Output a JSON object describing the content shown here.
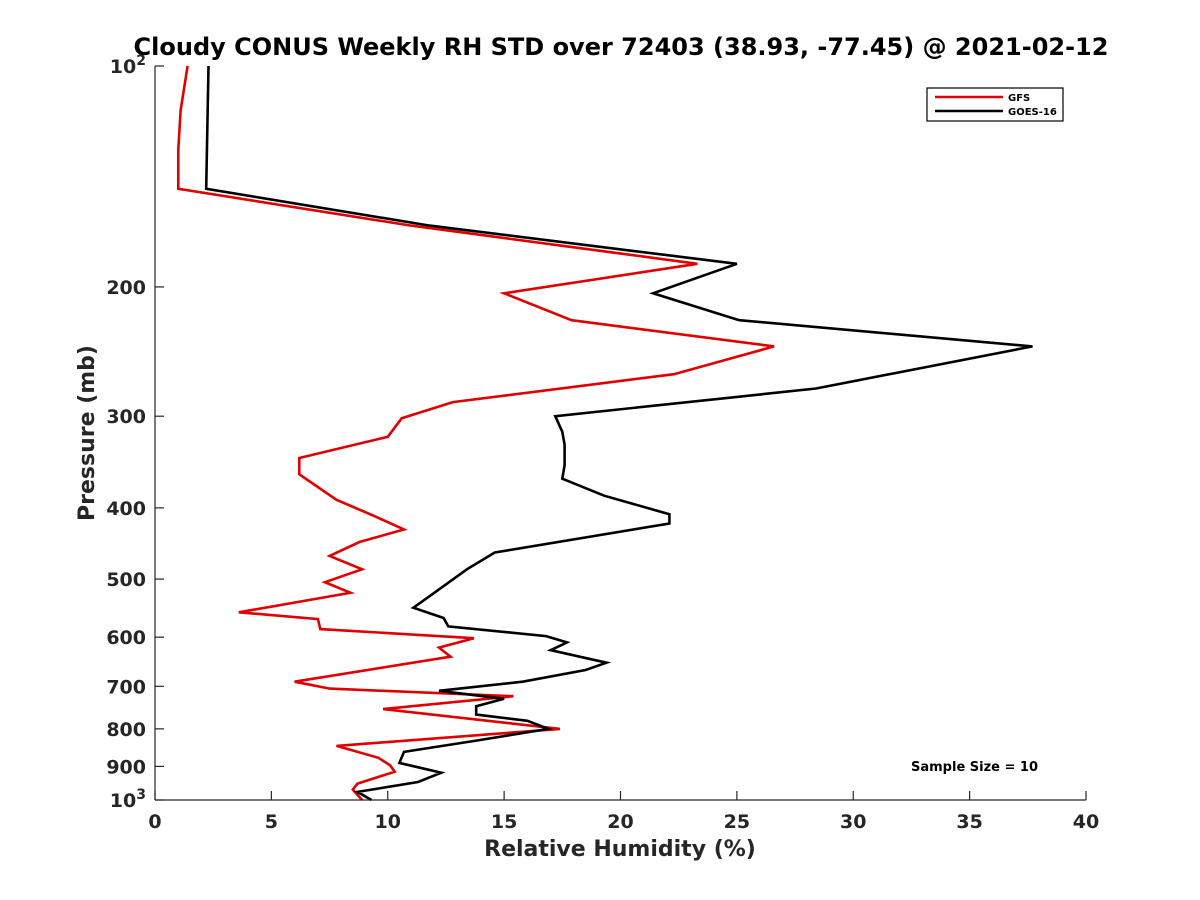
{
  "chart_data": {
    "type": "line",
    "title": "Cloudy CONUS Weekly RH STD over 72403 (38.93, -77.45) @ 2021-02-12",
    "xlabel": "Relative Humidity (%)",
    "ylabel": "Pressure (mb)",
    "xlim": [
      0,
      40
    ],
    "ylim": [
      100,
      1000
    ],
    "y_scale": "log",
    "y_reversed": true,
    "grid": false,
    "legend_position": "top-right",
    "x_ticks": [
      "0",
      "5",
      "10",
      "15",
      "20",
      "25",
      "30",
      "35",
      "40"
    ],
    "y_ticks": [
      {
        "value": 100,
        "base": "10",
        "exp": "2"
      },
      {
        "value": 200,
        "label": "200"
      },
      {
        "value": 300,
        "label": "300"
      },
      {
        "value": 400,
        "label": "400"
      },
      {
        "value": 500,
        "label": "500"
      },
      {
        "value": 600,
        "label": "600"
      },
      {
        "value": 700,
        "label": "700"
      },
      {
        "value": 800,
        "label": "800"
      },
      {
        "value": 900,
        "label": "900"
      },
      {
        "value": 1000,
        "base": "10",
        "exp": "3"
      }
    ],
    "annotation": "Sample Size = 10",
    "series": [
      {
        "name": "GFS",
        "color": "#e00000",
        "points": [
          {
            "x": 1.4,
            "y": 100
          },
          {
            "x": 1.1,
            "y": 115
          },
          {
            "x": 1.0,
            "y": 130
          },
          {
            "x": 1.0,
            "y": 147
          },
          {
            "x": 11.0,
            "y": 165
          },
          {
            "x": 23.3,
            "y": 186
          },
          {
            "x": 15.0,
            "y": 204
          },
          {
            "x": 17.9,
            "y": 222
          },
          {
            "x": 26.6,
            "y": 241
          },
          {
            "x": 22.3,
            "y": 263
          },
          {
            "x": 12.8,
            "y": 287
          },
          {
            "x": 10.6,
            "y": 302
          },
          {
            "x": 10.0,
            "y": 320
          },
          {
            "x": 6.2,
            "y": 342
          },
          {
            "x": 6.2,
            "y": 360
          },
          {
            "x": 7.8,
            "y": 390
          },
          {
            "x": 9.4,
            "y": 410
          },
          {
            "x": 10.7,
            "y": 428
          },
          {
            "x": 8.8,
            "y": 445
          },
          {
            "x": 7.5,
            "y": 465
          },
          {
            "x": 8.9,
            "y": 485
          },
          {
            "x": 7.3,
            "y": 505
          },
          {
            "x": 8.4,
            "y": 522
          },
          {
            "x": 3.6,
            "y": 555
          },
          {
            "x": 7.0,
            "y": 567
          },
          {
            "x": 7.1,
            "y": 585
          },
          {
            "x": 13.7,
            "y": 602
          },
          {
            "x": 12.2,
            "y": 620
          },
          {
            "x": 12.7,
            "y": 638
          },
          {
            "x": 6.0,
            "y": 690
          },
          {
            "x": 7.5,
            "y": 705
          },
          {
            "x": 15.4,
            "y": 722
          },
          {
            "x": 9.8,
            "y": 752
          },
          {
            "x": 17.4,
            "y": 800
          },
          {
            "x": 7.8,
            "y": 844
          },
          {
            "x": 9.6,
            "y": 876
          },
          {
            "x": 10.1,
            "y": 897
          },
          {
            "x": 10.3,
            "y": 915
          },
          {
            "x": 8.7,
            "y": 950
          },
          {
            "x": 8.5,
            "y": 968
          },
          {
            "x": 8.9,
            "y": 1000
          }
        ]
      },
      {
        "name": "GOES-16",
        "color": "#000000",
        "points": [
          {
            "x": 2.3,
            "y": 100
          },
          {
            "x": 2.2,
            "y": 147
          },
          {
            "x": 11.8,
            "y": 165
          },
          {
            "x": 25.0,
            "y": 186
          },
          {
            "x": 21.4,
            "y": 204
          },
          {
            "x": 25.1,
            "y": 222
          },
          {
            "x": 37.7,
            "y": 241
          },
          {
            "x": 28.4,
            "y": 275
          },
          {
            "x": 17.2,
            "y": 300
          },
          {
            "x": 17.5,
            "y": 315
          },
          {
            "x": 17.6,
            "y": 328
          },
          {
            "x": 17.6,
            "y": 350
          },
          {
            "x": 17.5,
            "y": 365
          },
          {
            "x": 19.3,
            "y": 385
          },
          {
            "x": 22.1,
            "y": 408
          },
          {
            "x": 22.1,
            "y": 420
          },
          {
            "x": 14.6,
            "y": 460
          },
          {
            "x": 13.4,
            "y": 485
          },
          {
            "x": 12.0,
            "y": 522
          },
          {
            "x": 11.1,
            "y": 547
          },
          {
            "x": 12.4,
            "y": 565
          },
          {
            "x": 12.6,
            "y": 580
          },
          {
            "x": 16.8,
            "y": 598
          },
          {
            "x": 17.7,
            "y": 610
          },
          {
            "x": 17.0,
            "y": 625
          },
          {
            "x": 19.4,
            "y": 650
          },
          {
            "x": 18.5,
            "y": 665
          },
          {
            "x": 15.8,
            "y": 690
          },
          {
            "x": 12.2,
            "y": 710
          },
          {
            "x": 15.0,
            "y": 728
          },
          {
            "x": 13.8,
            "y": 745
          },
          {
            "x": 13.8,
            "y": 765
          },
          {
            "x": 16.0,
            "y": 780
          },
          {
            "x": 16.9,
            "y": 800
          },
          {
            "x": 13.8,
            "y": 830
          },
          {
            "x": 10.7,
            "y": 860
          },
          {
            "x": 10.5,
            "y": 890
          },
          {
            "x": 12.3,
            "y": 918
          },
          {
            "x": 11.3,
            "y": 945
          },
          {
            "x": 8.7,
            "y": 975
          },
          {
            "x": 9.3,
            "y": 1000
          }
        ]
      }
    ]
  }
}
